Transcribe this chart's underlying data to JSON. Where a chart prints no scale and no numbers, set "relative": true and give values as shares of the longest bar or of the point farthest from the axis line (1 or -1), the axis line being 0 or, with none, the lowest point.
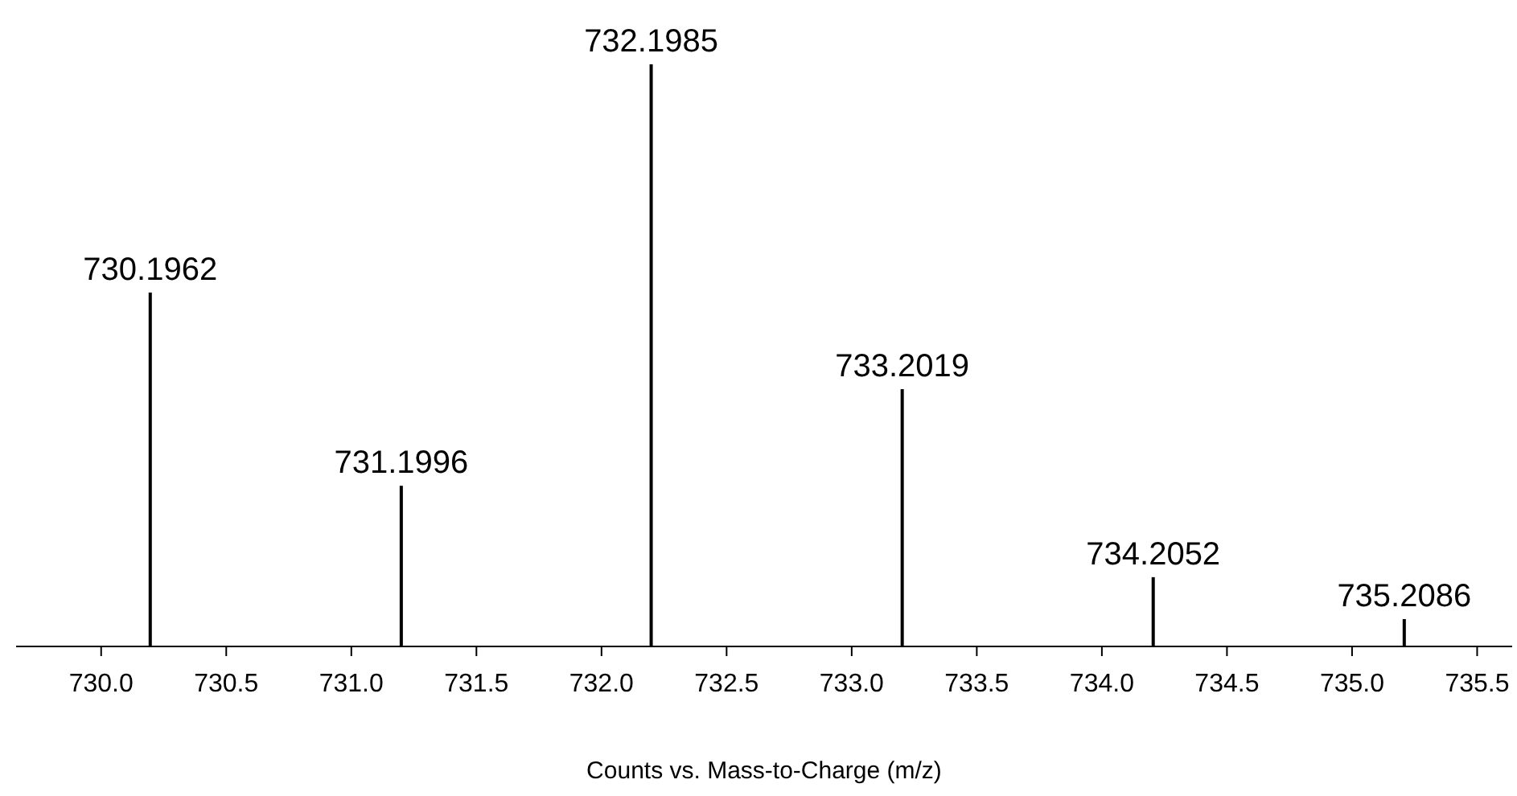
{
  "chart_data": {
    "type": "bar",
    "relative": true,
    "xlabel": "Counts vs. Mass-to-Charge (m/z)",
    "x": [
      730.1962,
      731.1996,
      732.1985,
      733.2019,
      734.2052,
      735.2086
    ],
    "values": [
      0.608,
      0.276,
      1,
      0.442,
      0.119,
      0.047
    ],
    "color": "#000000",
    "xlim": [
      729.66,
      735.64
    ],
    "xticks": [
      {
        "value": 730,
        "label": "730.0"
      },
      {
        "value": 730.5,
        "label": "730.5"
      },
      {
        "value": 731,
        "label": "731.0"
      },
      {
        "value": 731.5,
        "label": "731.5"
      },
      {
        "value": 732,
        "label": "732.0"
      },
      {
        "value": 732.5,
        "label": "732.5"
      },
      {
        "value": 733,
        "label": "733.0"
      },
      {
        "value": 733.5,
        "label": "733.5"
      },
      {
        "value": 734,
        "label": "734.0"
      },
      {
        "value": 734.5,
        "label": "734.5"
      },
      {
        "value": 735,
        "label": "735.0"
      },
      {
        "value": 735.5,
        "label": "735.5"
      }
    ],
    "annotations": [
      {
        "text": "730.1962",
        "x": 730.1962,
        "y": 0.608
      },
      {
        "text": "731.1996",
        "x": 731.1996,
        "y": 0.276
      },
      {
        "text": "732.1985",
        "x": 732.1985,
        "y": 1
      },
      {
        "text": "733.2019",
        "x": 733.2019,
        "y": 0.442
      },
      {
        "text": "734.2052",
        "x": 734.2052,
        "y": 0.119
      },
      {
        "text": "735.2086",
        "x": 735.2086,
        "y": 0.047
      }
    ]
  }
}
